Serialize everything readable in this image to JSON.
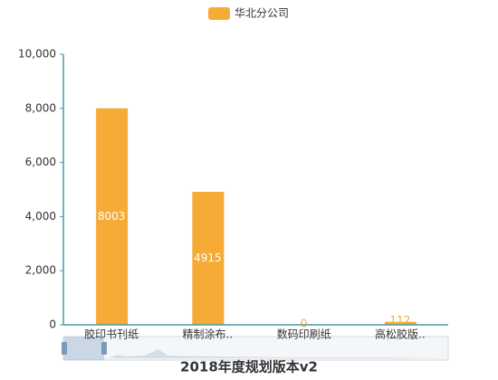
{
  "chart_data": {
    "type": "bar",
    "title": "2018年度规划版本v2",
    "categories": [
      "胶印书刊纸",
      "精制涂布..",
      "数码印刷纸",
      "高松胶版.."
    ],
    "series": [
      {
        "name": "华北分公司",
        "color": "#f5ab35",
        "values": [
          8003,
          4915,
          0,
          112
        ]
      }
    ],
    "ylim": [
      0,
      10000
    ],
    "yticks": [
      0,
      {
        "value": 2000,
        "label": "2,000"
      },
      {
        "value": 4000,
        "label": "4,000"
      },
      {
        "value": 6000,
        "label": "6,000"
      },
      {
        "value": 8000,
        "label": "8,000"
      },
      {
        "value": 10000,
        "label": "10,000"
      }
    ],
    "legend": "top"
  }
}
